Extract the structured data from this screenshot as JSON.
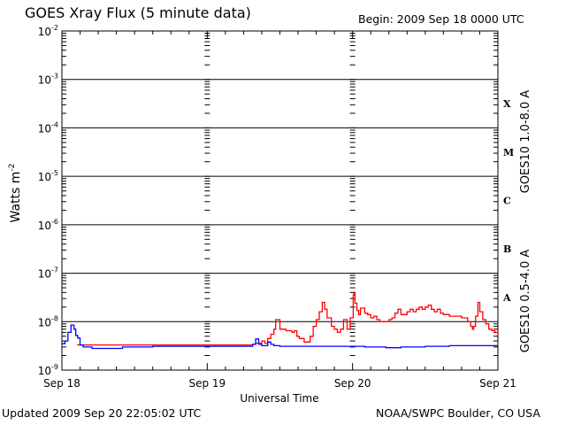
{
  "title": "GOES Xray Flux (5 minute data)",
  "begin": "Begin:  2009 Sep 18 0000 UTC",
  "updated": "Updated 2009 Sep 20 22:05:02 UTC",
  "credit": "NOAA/SWPC Boulder, CO USA",
  "chart_data": {
    "type": "line",
    "title": "GOES Xray Flux (5 minute data)",
    "xlabel": "Universal Time",
    "ylabel": "Watts m",
    "ylabel_sup": "-2",
    "yscale": "log",
    "ylim": [
      1e-09,
      0.01
    ],
    "xlim": [
      "2009-09-18 00:00",
      "2009-09-21 00:00"
    ],
    "x_ticks": [
      "Sep 18",
      "Sep 19",
      "Sep 20",
      "Sep 21"
    ],
    "y_ticks": [
      {
        "base": "10",
        "exp": "-9",
        "value": 1e-09
      },
      {
        "base": "10",
        "exp": "-8",
        "value": 1e-08
      },
      {
        "base": "10",
        "exp": "-7",
        "value": 1e-07
      },
      {
        "base": "10",
        "exp": "-6",
        "value": 1e-06
      },
      {
        "base": "10",
        "exp": "-5",
        "value": 1e-05
      },
      {
        "base": "10",
        "exp": "-4",
        "value": 0.0001
      },
      {
        "base": "10",
        "exp": "-3",
        "value": 0.001
      },
      {
        "base": "10",
        "exp": "-2",
        "value": 0.01
      }
    ],
    "flare_classes": [
      {
        "label": "A",
        "bottom": 1e-08
      },
      {
        "label": "B",
        "bottom": 1e-07
      },
      {
        "label": "C",
        "bottom": 1e-06
      },
      {
        "label": "M",
        "bottom": 1e-05
      },
      {
        "label": "X",
        "bottom": 0.0001
      }
    ],
    "grid": true,
    "series": [
      {
        "name": "GOES10 1.0-8.0 A",
        "color": "#ff0000",
        "x_hours": [
          2.5,
          5,
          10,
          15,
          20,
          23.7,
          24,
          30,
          31.5,
          32,
          33,
          33.5,
          34,
          34.5,
          35,
          35.3,
          35.6,
          36,
          37,
          38,
          38.4,
          38.8,
          39.2,
          40,
          41,
          41.5,
          42,
          42.5,
          43,
          43.4,
          43.8,
          44.2,
          44.5,
          45,
          45.5,
          46,
          46.5,
          46.9,
          47.1,
          47.6,
          47.9,
          48.1,
          48.2,
          48.4,
          48.7,
          49,
          49.3,
          49.6,
          50,
          50.5,
          51,
          51.5,
          52,
          52.5,
          53,
          53.5,
          54,
          54.5,
          55,
          55.5,
          56,
          57,
          57.5,
          58,
          58.5,
          59,
          59.5,
          60,
          60.5,
          61,
          61.5,
          62,
          62.5,
          63,
          64,
          65,
          66,
          67,
          67.5,
          67.8,
          68,
          68.3,
          68.7,
          69,
          69.5,
          70,
          70.5,
          71,
          71.5,
          72
        ],
        "y": [
          3.3e-09,
          3.3e-09,
          3.3e-09,
          3.3e-09,
          3.3e-09,
          3.3e-09,
          3.3e-09,
          3.3e-09,
          3.4e-09,
          3.6e-09,
          4e-09,
          3.6e-09,
          4.5e-09,
          5.5e-09,
          7e-09,
          1.1e-08,
          1.1e-08,
          7e-09,
          6.5e-09,
          6e-09,
          6.5e-09,
          5e-09,
          4.5e-09,
          3.8e-09,
          5e-09,
          8e-09,
          1.1e-08,
          1.6e-08,
          2.5e-08,
          1.8e-08,
          1.2e-08,
          1.2e-08,
          8e-09,
          7e-09,
          6e-09,
          7e-09,
          1.1e-08,
          1.1e-08,
          7e-09,
          1.2e-08,
          1.2e-08,
          3.5e-08,
          4e-08,
          2.4e-08,
          1.7e-08,
          1.4e-08,
          1.9e-08,
          1.9e-08,
          1.5e-08,
          1.4e-08,
          1.2e-08,
          1.3e-08,
          1.1e-08,
          1e-08,
          1e-08,
          1e-08,
          1.1e-08,
          1.2e-08,
          1.5e-08,
          1.8e-08,
          1.4e-08,
          1.6e-08,
          1.8e-08,
          1.6e-08,
          1.8e-08,
          2e-08,
          1.8e-08,
          2e-08,
          2.2e-08,
          1.8e-08,
          1.6e-08,
          1.8e-08,
          1.5e-08,
          1.4e-08,
          1.3e-08,
          1.3e-08,
          1.2e-08,
          1e-08,
          8e-09,
          7e-09,
          8e-09,
          1.3e-08,
          2.5e-08,
          1.6e-08,
          1.1e-08,
          9e-09,
          7e-09,
          6.5e-09,
          6e-09,
          6.5e-09
        ]
      },
      {
        "name": "GOES10 0.5-4.0 A",
        "color": "#0000ff",
        "x_hours": [
          0,
          0.5,
          1,
          1.5,
          2,
          2.3,
          2.6,
          3,
          3.5,
          5,
          8,
          10,
          15,
          20,
          23.7,
          24,
          30,
          31.5,
          32,
          32.5,
          33,
          34,
          34.5,
          35,
          36,
          38,
          40,
          42,
          44,
          46,
          48,
          49,
          50,
          53,
          53.5,
          56,
          60,
          64,
          68,
          72
        ],
        "y": [
          3.5e-09,
          4e-09,
          6e-09,
          8.5e-09,
          7e-09,
          5.2e-09,
          4.6e-09,
          3.3e-09,
          3e-09,
          2.8e-09,
          2.8e-09,
          3e-09,
          3.1e-09,
          3.1e-09,
          3.1e-09,
          3.1e-09,
          3.1e-09,
          3.4e-09,
          4.4e-09,
          3.4e-09,
          3.2e-09,
          3.8e-09,
          3.4e-09,
          3.2e-09,
          3.1e-09,
          3.1e-09,
          3.1e-09,
          3.1e-09,
          3.1e-09,
          3.1e-09,
          3.1e-09,
          3.1e-09,
          3e-09,
          3e-09,
          2.9e-09,
          3e-09,
          3.1e-09,
          3.2e-09,
          3.2e-09,
          3.2e-09
        ]
      }
    ]
  }
}
